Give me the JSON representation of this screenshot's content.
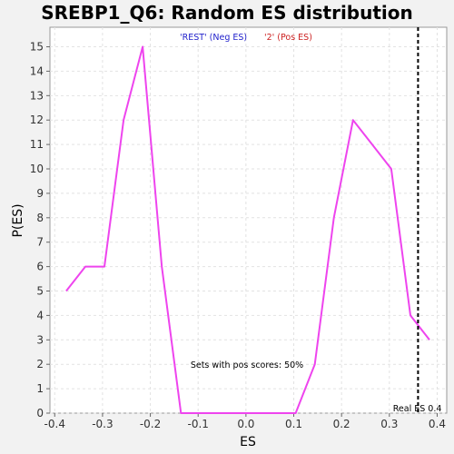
{
  "chart_data": {
    "type": "line",
    "title": "SREBP1_Q6: Random ES distribution",
    "xlabel": "ES",
    "ylabel": "P(ES)",
    "xlim": [
      -0.41,
      0.42
    ],
    "ylim": [
      0,
      15.8
    ],
    "x_ticks": [
      -0.4,
      -0.3,
      -0.2,
      -0.1,
      0.0,
      0.1,
      0.2,
      0.3,
      0.4
    ],
    "x_tick_labels": [
      "-0.4",
      "-0.3",
      "-0.2",
      "-0.1",
      "0.0",
      "0.1",
      "0.2",
      "0.3",
      "0.4"
    ],
    "y_ticks": [
      0,
      1,
      2,
      3,
      4,
      5,
      6,
      7,
      8,
      9,
      10,
      11,
      12,
      13,
      14,
      15
    ],
    "y_tick_labels": [
      "0",
      "1",
      "2",
      "3",
      "4",
      "5",
      "6",
      "7",
      "8",
      "9",
      "10",
      "11",
      "12",
      "13",
      "14",
      "15"
    ],
    "grid": true,
    "series": [
      {
        "color": "#ee44ee",
        "x": [
          -0.376,
          -0.336,
          -0.296,
          -0.256,
          -0.216,
          -0.176,
          -0.136,
          -0.096,
          -0.056,
          -0.016,
          0.024,
          0.064,
          0.104,
          0.144,
          0.184,
          0.224,
          0.264,
          0.304,
          0.344,
          0.384
        ],
        "y": [
          5,
          6,
          6,
          12,
          15,
          6,
          0,
          0,
          0,
          0,
          0,
          0,
          0,
          2,
          8,
          12,
          11,
          10,
          4,
          3
        ]
      }
    ],
    "legend": {
      "placement": "top-center",
      "entries": [
        {
          "label": "'REST' (Neg ES)",
          "color": "#2222cc"
        },
        {
          "label": "'2' (Pos ES)",
          "color": "#cc2222"
        }
      ]
    },
    "real_es": {
      "value": 0.36,
      "label": "Real ES 0.4",
      "style": "dashed",
      "color": "#000000"
    },
    "annotation": "Sets with pos scores: 50%"
  }
}
